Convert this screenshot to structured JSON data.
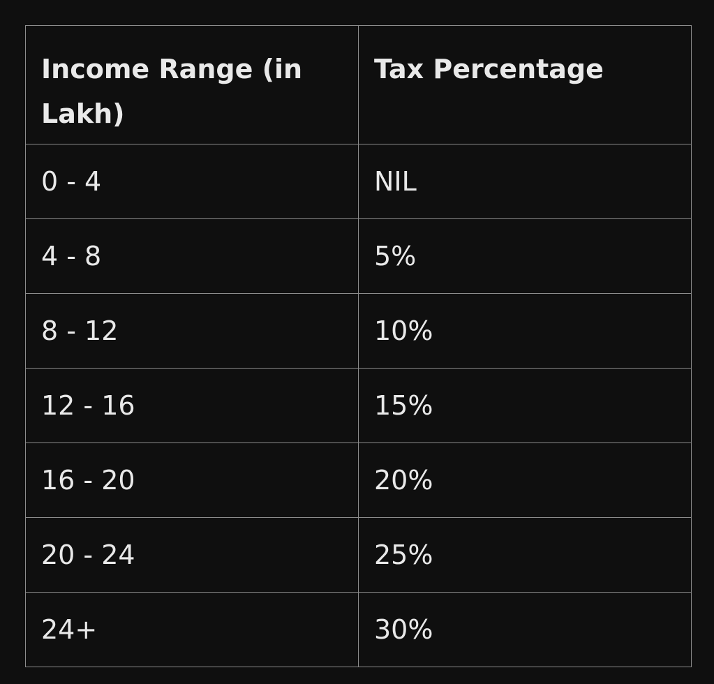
{
  "table": {
    "headers": [
      "Income Range (in Lakh)",
      "Tax Percentage"
    ],
    "rows": [
      [
        "0 - 4",
        "NIL"
      ],
      [
        "4 - 8",
        "5%"
      ],
      [
        "8 - 12",
        "10%"
      ],
      [
        "12 - 16",
        "15%"
      ],
      [
        "16 - 20",
        "20%"
      ],
      [
        "20 - 24",
        "25%"
      ],
      [
        "24+",
        "30%"
      ]
    ]
  },
  "colors": {
    "background": "#0f0f0f",
    "text": "#e9e9e9",
    "border": "#8c8c8c"
  }
}
